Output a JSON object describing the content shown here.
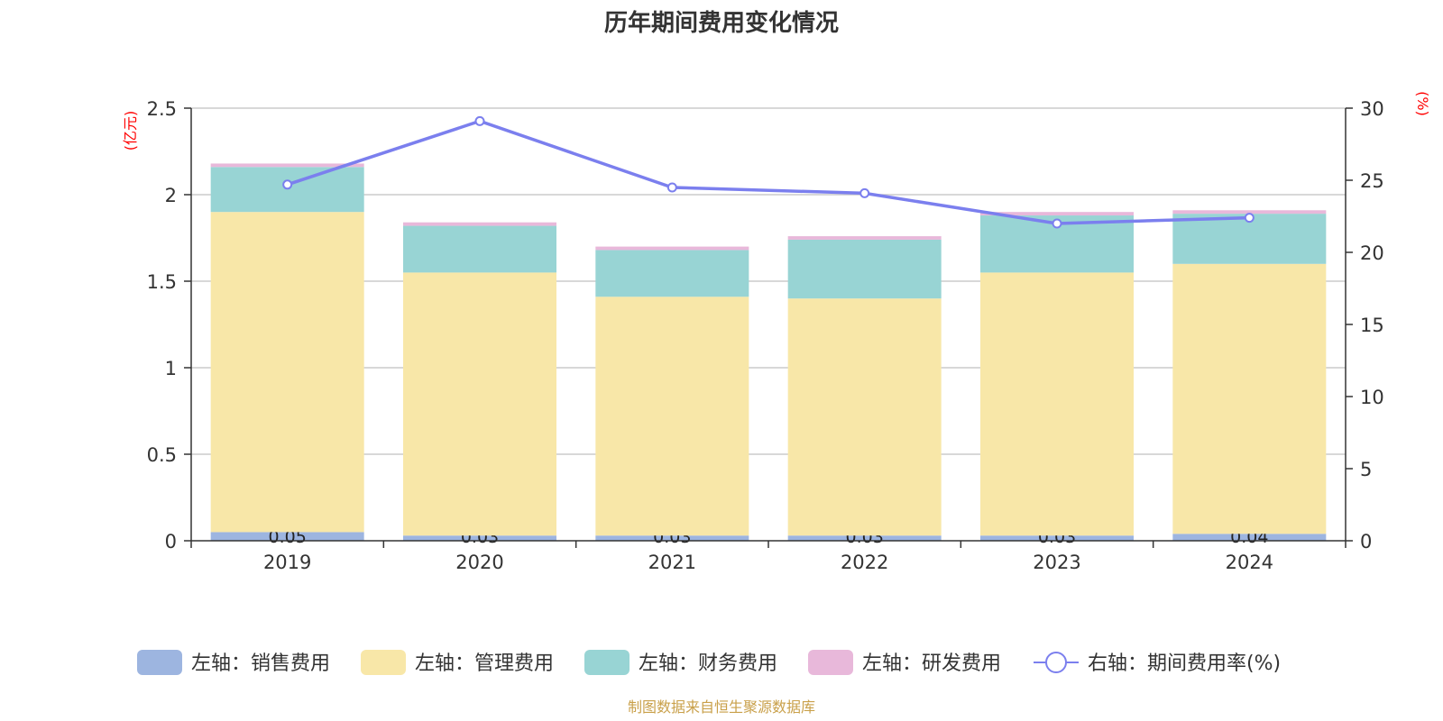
{
  "chart_data": {
    "type": "bar",
    "title": "历年期间费用变化情况",
    "left_axis_unit": "(亿元)",
    "right_axis_unit": "(%)",
    "categories": [
      "2019",
      "2020",
      "2021",
      "2022",
      "2023",
      "2024"
    ],
    "ylim_left": [
      0,
      2.5
    ],
    "yticks_left": [
      "0",
      "0.5",
      "1",
      "1.5",
      "2",
      "2.5"
    ],
    "ylim_right": [
      0,
      30
    ],
    "yticks_right": [
      "0",
      "5",
      "10",
      "15",
      "20",
      "25",
      "30"
    ],
    "grid": true,
    "legend_position": "bottom",
    "series": [
      {
        "name": "左轴：销售费用",
        "type": "bar",
        "axis": "left",
        "color": "#9db5e0",
        "values": [
          0.05,
          0.03,
          0.03,
          0.03,
          0.03,
          0.04
        ],
        "labels": [
          "0.05",
          "0.03",
          "0.03",
          "0.03",
          "0.03",
          "0.04"
        ]
      },
      {
        "name": "左轴：管理费用",
        "type": "bar",
        "axis": "left",
        "color": "#f8e7a8",
        "values": [
          1.85,
          1.52,
          1.38,
          1.37,
          1.52,
          1.56
        ]
      },
      {
        "name": "左轴：财务费用",
        "type": "bar",
        "axis": "left",
        "color": "#98d4d4",
        "values": [
          0.26,
          0.27,
          0.27,
          0.34,
          0.33,
          0.29
        ]
      },
      {
        "name": "左轴：研发费用",
        "type": "bar",
        "axis": "left",
        "color": "#e8b8da",
        "values": [
          0.02,
          0.02,
          0.02,
          0.02,
          0.02,
          0.02
        ]
      },
      {
        "name": "右轴：期间费用率(%)",
        "type": "line",
        "axis": "right",
        "color": "#7b7fee",
        "values": [
          24.7,
          29.1,
          24.5,
          24.1,
          22.0,
          22.4
        ]
      }
    ],
    "source": "制图数据来自恒生聚源数据库"
  }
}
